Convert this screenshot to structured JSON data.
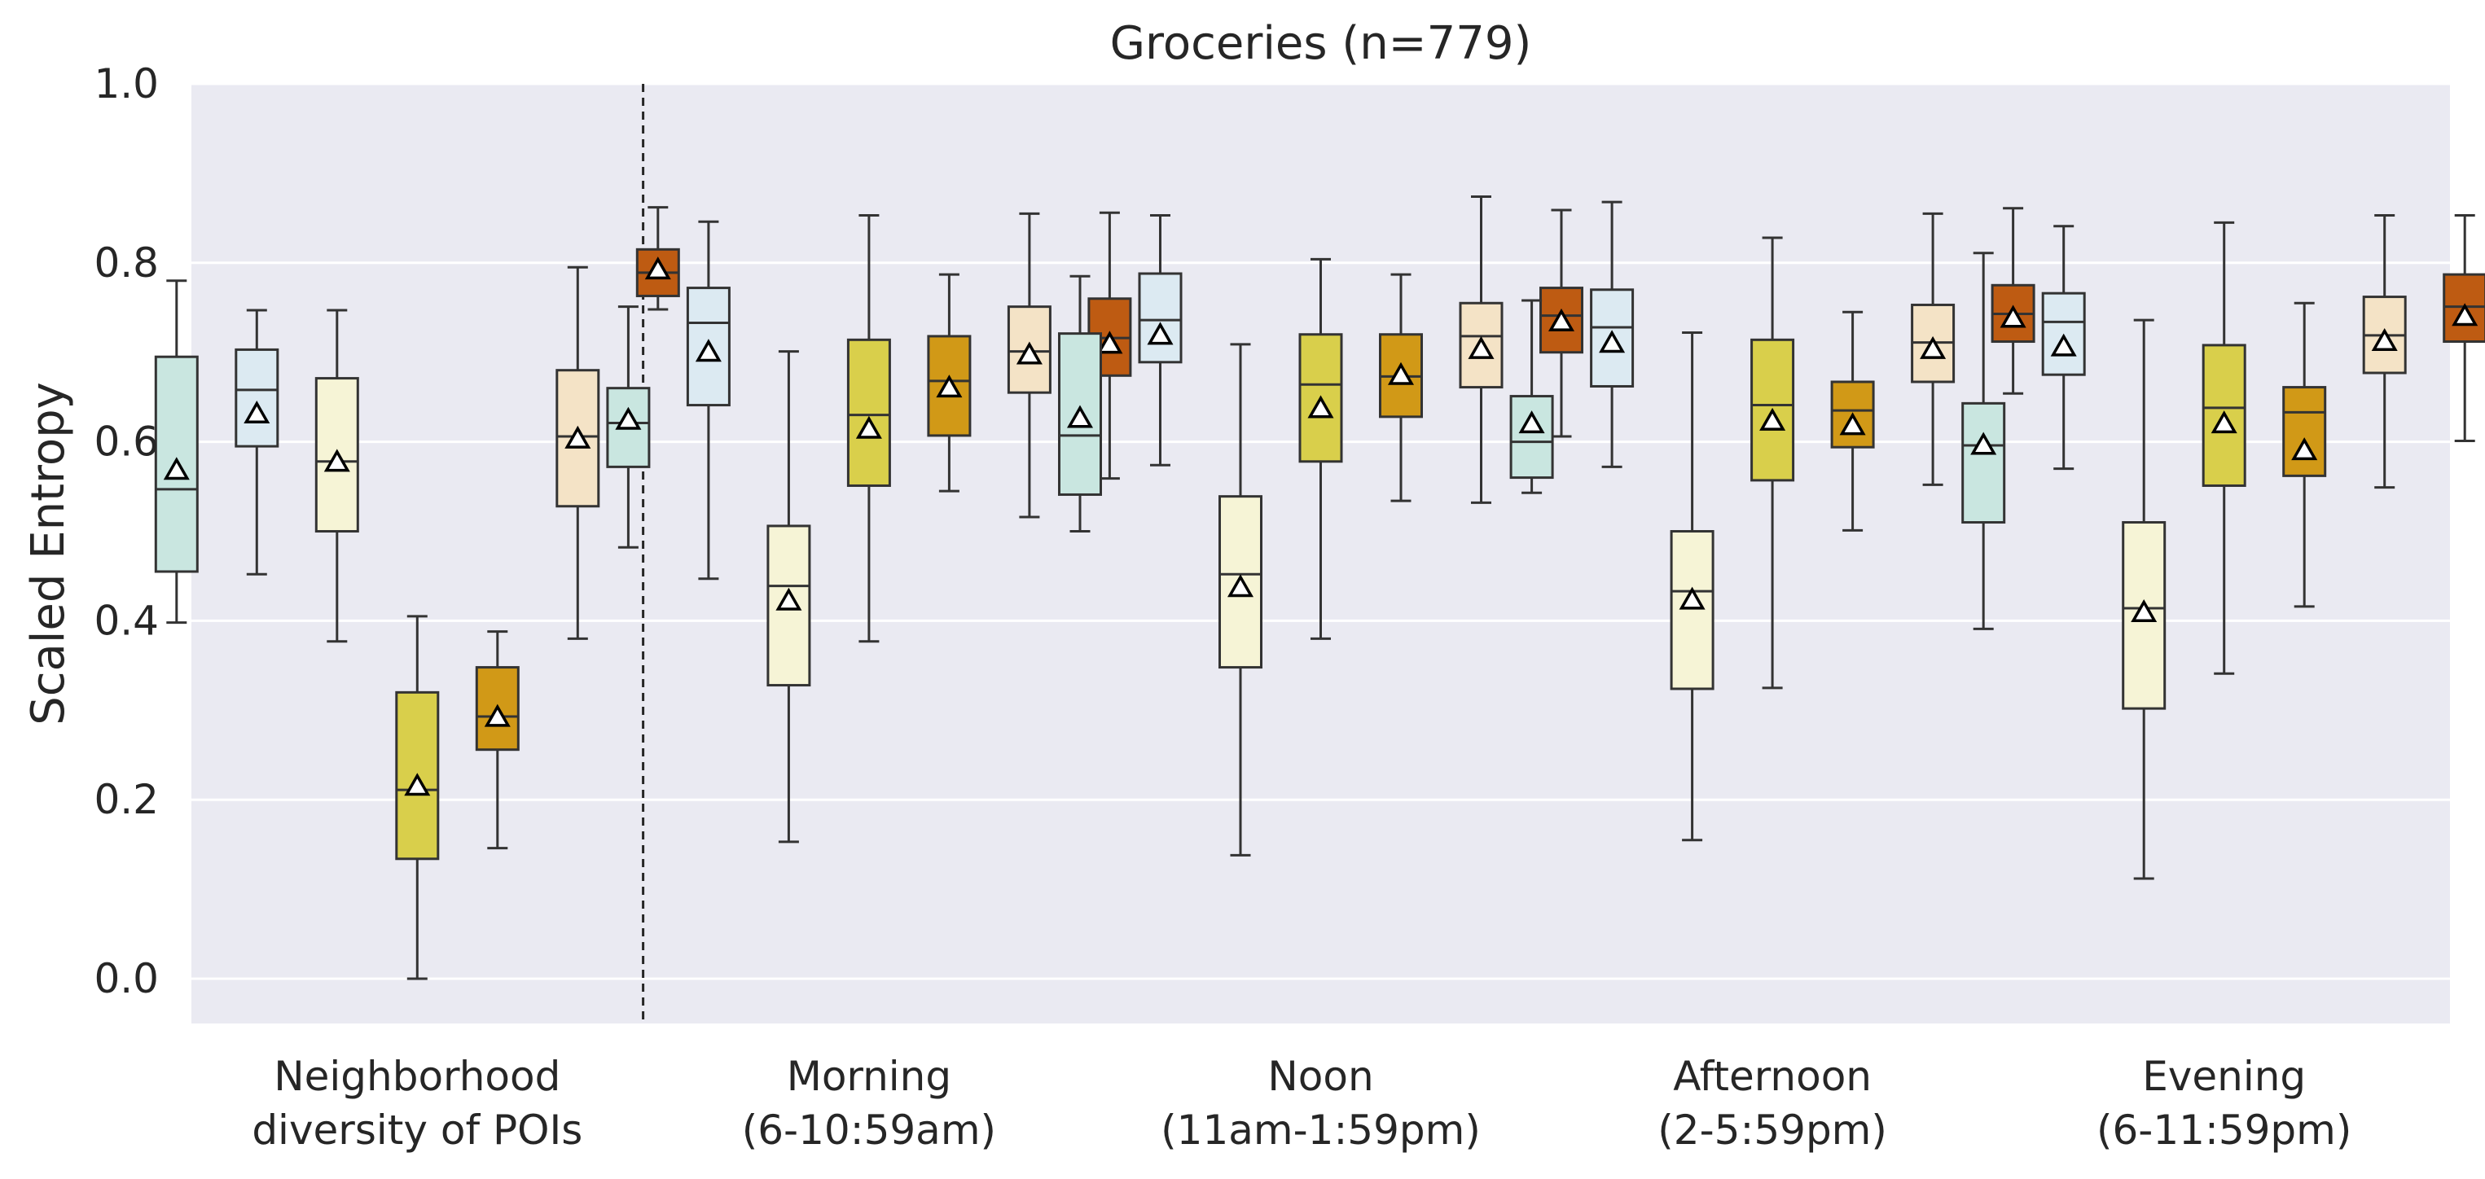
{
  "chart_data": {
    "type": "boxplot",
    "title": "Groceries (n=779)",
    "ylabel": "Scaled Entropy",
    "xlabel": "",
    "ylim": [
      -0.05,
      1.0
    ],
    "yticks": [
      0.0,
      0.2,
      0.4,
      0.6,
      0.8,
      1.0
    ],
    "ytick_labels": [
      "0.0",
      "0.2",
      "0.4",
      "0.6",
      "0.8",
      "1.0"
    ],
    "grid": true,
    "background": "#EAEAF2",
    "separator": "dashed vertical line after first group",
    "categories": [
      {
        "line1": "Neighborhood",
        "line2": "diversity of POIs"
      },
      {
        "line1": "Morning",
        "line2": "(6-10:59am)"
      },
      {
        "line1": "Noon",
        "line2": "(11am-1:59pm)"
      },
      {
        "line1": "Afternoon",
        "line2": "(2-5:59pm)"
      },
      {
        "line1": "Evening",
        "line2": "(6-11:59pm)"
      }
    ],
    "box_colors": [
      "#C9E6E0",
      "#DCEAF2",
      "#F6F4D6",
      "#D9CF4B",
      "#D19917",
      "#F4E3C6",
      "#BE5B12"
    ],
    "groups": [
      {
        "category": "Neighborhood diversity of POIs",
        "boxes": [
          {
            "whislo": 0.398,
            "q1": 0.455,
            "med": 0.547,
            "q3": 0.695,
            "whishi": 0.78,
            "mean": 0.568
          },
          {
            "whislo": 0.452,
            "q1": 0.595,
            "med": 0.658,
            "q3": 0.703,
            "whishi": 0.747,
            "mean": 0.631
          },
          {
            "whislo": 0.377,
            "q1": 0.5,
            "med": 0.578,
            "q3": 0.671,
            "whishi": 0.747,
            "mean": 0.577
          },
          {
            "whislo": 0.0,
            "q1": 0.134,
            "med": 0.211,
            "q3": 0.32,
            "whishi": 0.405,
            "mean": 0.215
          },
          {
            "whislo": 0.146,
            "q1": 0.256,
            "med": 0.293,
            "q3": 0.348,
            "whishi": 0.388,
            "mean": 0.292
          },
          {
            "whislo": 0.38,
            "q1": 0.528,
            "med": 0.606,
            "q3": 0.68,
            "whishi": 0.795,
            "mean": 0.603
          },
          {
            "whislo": 0.748,
            "q1": 0.763,
            "med": 0.789,
            "q3": 0.815,
            "whishi": 0.862,
            "mean": 0.792
          }
        ]
      },
      {
        "category": "Morning (6-10:59am)",
        "boxes": [
          {
            "whislo": 0.482,
            "q1": 0.572,
            "med": 0.621,
            "q3": 0.66,
            "whishi": 0.751,
            "mean": 0.624
          },
          {
            "whislo": 0.447,
            "q1": 0.641,
            "med": 0.733,
            "q3": 0.772,
            "whishi": 0.846,
            "mean": 0.7
          },
          {
            "whislo": 0.153,
            "q1": 0.328,
            "med": 0.439,
            "q3": 0.506,
            "whishi": 0.701,
            "mean": 0.422
          },
          {
            "whislo": 0.377,
            "q1": 0.551,
            "med": 0.63,
            "q3": 0.714,
            "whishi": 0.853,
            "mean": 0.614
          },
          {
            "whislo": 0.545,
            "q1": 0.607,
            "med": 0.668,
            "q3": 0.718,
            "whishi": 0.787,
            "mean": 0.66
          },
          {
            "whislo": 0.516,
            "q1": 0.655,
            "med": 0.701,
            "q3": 0.751,
            "whishi": 0.855,
            "mean": 0.697
          },
          {
            "whislo": 0.559,
            "q1": 0.674,
            "med": 0.716,
            "q3": 0.76,
            "whishi": 0.856,
            "mean": 0.709
          }
        ]
      },
      {
        "category": "Noon (11am-1:59pm)",
        "boxes": [
          {
            "whislo": 0.5,
            "q1": 0.541,
            "med": 0.607,
            "q3": 0.721,
            "whishi": 0.785,
            "mean": 0.626
          },
          {
            "whislo": 0.574,
            "q1": 0.689,
            "med": 0.736,
            "q3": 0.788,
            "whishi": 0.853,
            "mean": 0.719
          },
          {
            "whislo": 0.138,
            "q1": 0.348,
            "med": 0.452,
            "q3": 0.539,
            "whishi": 0.709,
            "mean": 0.437
          },
          {
            "whislo": 0.38,
            "q1": 0.578,
            "med": 0.664,
            "q3": 0.72,
            "whishi": 0.804,
            "mean": 0.637
          },
          {
            "whislo": 0.534,
            "q1": 0.628,
            "med": 0.673,
            "q3": 0.72,
            "whishi": 0.787,
            "mean": 0.674
          },
          {
            "whislo": 0.532,
            "q1": 0.661,
            "med": 0.718,
            "q3": 0.755,
            "whishi": 0.874,
            "mean": 0.703
          },
          {
            "whislo": 0.606,
            "q1": 0.7,
            "med": 0.741,
            "q3": 0.772,
            "whishi": 0.859,
            "mean": 0.734
          }
        ]
      },
      {
        "category": "Afternoon (2-5:59pm)",
        "boxes": [
          {
            "whislo": 0.543,
            "q1": 0.56,
            "med": 0.6,
            "q3": 0.651,
            "whishi": 0.758,
            "mean": 0.62
          },
          {
            "whislo": 0.572,
            "q1": 0.662,
            "med": 0.728,
            "q3": 0.77,
            "whishi": 0.868,
            "mean": 0.71
          },
          {
            "whislo": 0.155,
            "q1": 0.324,
            "med": 0.433,
            "q3": 0.5,
            "whishi": 0.722,
            "mean": 0.423
          },
          {
            "whislo": 0.325,
            "q1": 0.557,
            "med": 0.641,
            "q3": 0.714,
            "whishi": 0.828,
            "mean": 0.623
          },
          {
            "whislo": 0.501,
            "q1": 0.594,
            "med": 0.635,
            "q3": 0.667,
            "whishi": 0.745,
            "mean": 0.618
          },
          {
            "whislo": 0.552,
            "q1": 0.667,
            "med": 0.711,
            "q3": 0.753,
            "whishi": 0.855,
            "mean": 0.703
          },
          {
            "whislo": 0.654,
            "q1": 0.712,
            "med": 0.743,
            "q3": 0.775,
            "whishi": 0.861,
            "mean": 0.738
          }
        ]
      },
      {
        "category": "Evening (6-11:59pm)",
        "boxes": [
          {
            "whislo": 0.391,
            "q1": 0.51,
            "med": 0.596,
            "q3": 0.643,
            "whishi": 0.811,
            "mean": 0.596
          },
          {
            "whislo": 0.57,
            "q1": 0.675,
            "med": 0.734,
            "q3": 0.766,
            "whishi": 0.841,
            "mean": 0.706
          },
          {
            "whislo": 0.112,
            "q1": 0.302,
            "med": 0.414,
            "q3": 0.51,
            "whishi": 0.736,
            "mean": 0.409
          },
          {
            "whislo": 0.341,
            "q1": 0.551,
            "med": 0.638,
            "q3": 0.708,
            "whishi": 0.845,
            "mean": 0.62
          },
          {
            "whislo": 0.416,
            "q1": 0.562,
            "med": 0.633,
            "q3": 0.661,
            "whishi": 0.755,
            "mean": 0.59
          },
          {
            "whislo": 0.549,
            "q1": 0.677,
            "med": 0.719,
            "q3": 0.762,
            "whishi": 0.853,
            "mean": 0.712
          },
          {
            "whislo": 0.601,
            "q1": 0.712,
            "med": 0.751,
            "q3": 0.787,
            "whishi": 0.853,
            "mean": 0.74
          }
        ]
      }
    ]
  }
}
